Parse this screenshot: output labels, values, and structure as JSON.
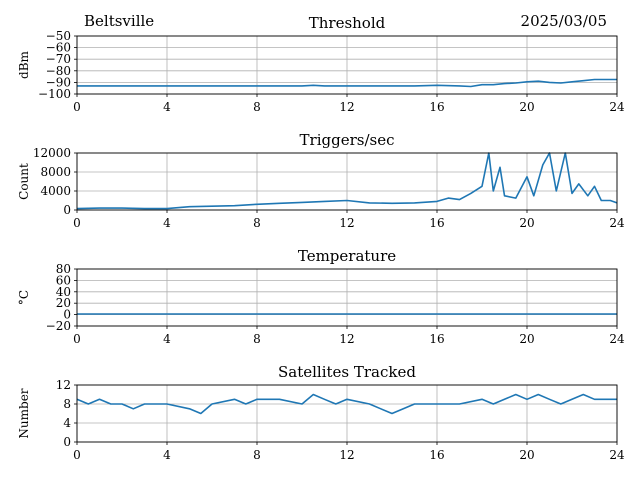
{
  "header": {
    "station": "Beltsville",
    "date": "2025/03/05"
  },
  "colors": {
    "series": "#1f77b4",
    "grid": "#b0b0b0"
  },
  "chart_data": [
    {
      "type": "line",
      "title": "Threshold",
      "ylabel": "dBm",
      "xlim": [
        0,
        24
      ],
      "ylim": [
        -100,
        -50
      ],
      "xticks": [
        "0",
        "4",
        "8",
        "12",
        "16",
        "20",
        "24"
      ],
      "yticks": [
        "−50",
        "−60",
        "−70",
        "−80",
        "−90",
        "−100"
      ],
      "grid": true,
      "series": [
        {
          "x": [
            0,
            10,
            10.5,
            11,
            15,
            16,
            17,
            17.5,
            18,
            18.5,
            19,
            19.5,
            20,
            20.5,
            21,
            21.5,
            22,
            22.5,
            23,
            23.5,
            24
          ],
          "y": [
            -93,
            -93,
            -92.5,
            -93,
            -93,
            -92.5,
            -93,
            -93.5,
            -92,
            -92,
            -91,
            -90.5,
            -89.5,
            -89,
            -90,
            -90.5,
            -89.5,
            -88.5,
            -87.5,
            -87.5,
            -87.5
          ]
        }
      ]
    },
    {
      "type": "line",
      "title": "Triggers/sec",
      "ylabel": "Count",
      "xlim": [
        0,
        24
      ],
      "ylim": [
        0,
        12000
      ],
      "xticks": [
        "0",
        "4",
        "8",
        "12",
        "16",
        "20",
        "24"
      ],
      "yticks": [
        "0",
        "4000",
        "8000",
        "12000"
      ],
      "grid": true,
      "series": [
        {
          "x": [
            0,
            1,
            2,
            3,
            4,
            5,
            6,
            7,
            8,
            9,
            10,
            11,
            12,
            13,
            14,
            15,
            16,
            16.5,
            17,
            17.5,
            18,
            18.3,
            18.5,
            18.8,
            19,
            19.5,
            20,
            20.3,
            20.7,
            21,
            21.3,
            21.7,
            22,
            22.3,
            22.7,
            23,
            23.3,
            23.7,
            24
          ],
          "y": [
            300,
            400,
            400,
            300,
            300,
            700,
            800,
            900,
            1200,
            1400,
            1600,
            1800,
            2000,
            1500,
            1400,
            1500,
            1800,
            2500,
            2200,
            3500,
            5000,
            12000,
            4000,
            9000,
            3000,
            2500,
            7000,
            3000,
            9500,
            12000,
            4000,
            12000,
            3500,
            5500,
            3000,
            5000,
            2000,
            2000,
            1500
          ]
        }
      ]
    },
    {
      "type": "line",
      "title": "Temperature",
      "ylabel": "°C",
      "xlim": [
        0,
        24
      ],
      "ylim": [
        -20,
        80
      ],
      "xticks": [
        "0",
        "4",
        "8",
        "12",
        "16",
        "20",
        "24"
      ],
      "yticks": [
        "−20",
        "0",
        "20",
        "40",
        "60",
        "80"
      ],
      "grid": true,
      "series": [
        {
          "x": [
            0,
            24
          ],
          "y": [
            1,
            1
          ]
        }
      ]
    },
    {
      "type": "line",
      "title": "Satellites Tracked",
      "ylabel": "Number",
      "xlim": [
        0,
        24
      ],
      "ylim": [
        0,
        12
      ],
      "xticks": [
        "0",
        "4",
        "8",
        "12",
        "16",
        "20",
        "24"
      ],
      "yticks": [
        "0",
        "4",
        "8",
        "12"
      ],
      "grid": true,
      "series": [
        {
          "x": [
            0,
            0.5,
            1,
            1.5,
            2,
            2.5,
            3,
            4,
            5,
            5.5,
            6,
            7,
            7.5,
            8,
            9,
            10,
            10.5,
            11,
            11.5,
            12,
            13,
            13.5,
            14,
            14.5,
            15,
            16,
            17,
            18,
            18.5,
            19,
            19.5,
            20,
            20.5,
            21,
            21.5,
            22,
            22.5,
            23,
            23.5,
            24
          ],
          "y": [
            9,
            8,
            9,
            8,
            8,
            7,
            8,
            8,
            7,
            6,
            8,
            9,
            8,
            9,
            9,
            8,
            10,
            9,
            8,
            9,
            8,
            7,
            6,
            7,
            8,
            8,
            8,
            9,
            8,
            9,
            10,
            9,
            10,
            9,
            8,
            9,
            10,
            9,
            9,
            9
          ]
        }
      ]
    }
  ]
}
